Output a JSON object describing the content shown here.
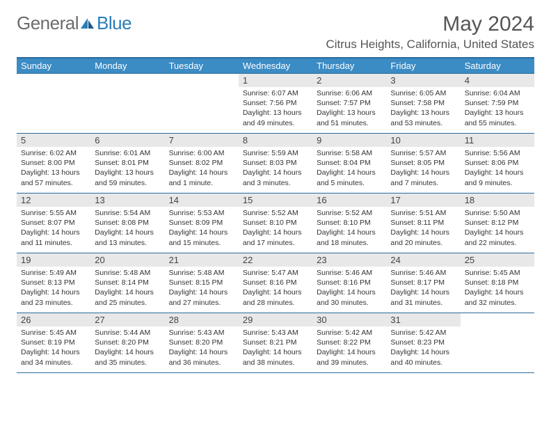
{
  "logo": {
    "text1": "General",
    "text2": "Blue"
  },
  "title": "May 2024",
  "location": "Citrus Heights, California, United States",
  "colors": {
    "header_bg": "#3b8bc4",
    "header_border": "#2a6b9c",
    "daynum_bg": "#e8e8e8",
    "text": "#333333",
    "title_text": "#555555"
  },
  "weekdays": [
    "Sunday",
    "Monday",
    "Tuesday",
    "Wednesday",
    "Thursday",
    "Friday",
    "Saturday"
  ],
  "weeks": [
    [
      null,
      null,
      null,
      {
        "n": "1",
        "sr": "6:07 AM",
        "ss": "7:56 PM",
        "dl": "13 hours and 49 minutes."
      },
      {
        "n": "2",
        "sr": "6:06 AM",
        "ss": "7:57 PM",
        "dl": "13 hours and 51 minutes."
      },
      {
        "n": "3",
        "sr": "6:05 AM",
        "ss": "7:58 PM",
        "dl": "13 hours and 53 minutes."
      },
      {
        "n": "4",
        "sr": "6:04 AM",
        "ss": "7:59 PM",
        "dl": "13 hours and 55 minutes."
      }
    ],
    [
      {
        "n": "5",
        "sr": "6:02 AM",
        "ss": "8:00 PM",
        "dl": "13 hours and 57 minutes."
      },
      {
        "n": "6",
        "sr": "6:01 AM",
        "ss": "8:01 PM",
        "dl": "13 hours and 59 minutes."
      },
      {
        "n": "7",
        "sr": "6:00 AM",
        "ss": "8:02 PM",
        "dl": "14 hours and 1 minute."
      },
      {
        "n": "8",
        "sr": "5:59 AM",
        "ss": "8:03 PM",
        "dl": "14 hours and 3 minutes."
      },
      {
        "n": "9",
        "sr": "5:58 AM",
        "ss": "8:04 PM",
        "dl": "14 hours and 5 minutes."
      },
      {
        "n": "10",
        "sr": "5:57 AM",
        "ss": "8:05 PM",
        "dl": "14 hours and 7 minutes."
      },
      {
        "n": "11",
        "sr": "5:56 AM",
        "ss": "8:06 PM",
        "dl": "14 hours and 9 minutes."
      }
    ],
    [
      {
        "n": "12",
        "sr": "5:55 AM",
        "ss": "8:07 PM",
        "dl": "14 hours and 11 minutes."
      },
      {
        "n": "13",
        "sr": "5:54 AM",
        "ss": "8:08 PM",
        "dl": "14 hours and 13 minutes."
      },
      {
        "n": "14",
        "sr": "5:53 AM",
        "ss": "8:09 PM",
        "dl": "14 hours and 15 minutes."
      },
      {
        "n": "15",
        "sr": "5:52 AM",
        "ss": "8:10 PM",
        "dl": "14 hours and 17 minutes."
      },
      {
        "n": "16",
        "sr": "5:52 AM",
        "ss": "8:10 PM",
        "dl": "14 hours and 18 minutes."
      },
      {
        "n": "17",
        "sr": "5:51 AM",
        "ss": "8:11 PM",
        "dl": "14 hours and 20 minutes."
      },
      {
        "n": "18",
        "sr": "5:50 AM",
        "ss": "8:12 PM",
        "dl": "14 hours and 22 minutes."
      }
    ],
    [
      {
        "n": "19",
        "sr": "5:49 AM",
        "ss": "8:13 PM",
        "dl": "14 hours and 23 minutes."
      },
      {
        "n": "20",
        "sr": "5:48 AM",
        "ss": "8:14 PM",
        "dl": "14 hours and 25 minutes."
      },
      {
        "n": "21",
        "sr": "5:48 AM",
        "ss": "8:15 PM",
        "dl": "14 hours and 27 minutes."
      },
      {
        "n": "22",
        "sr": "5:47 AM",
        "ss": "8:16 PM",
        "dl": "14 hours and 28 minutes."
      },
      {
        "n": "23",
        "sr": "5:46 AM",
        "ss": "8:16 PM",
        "dl": "14 hours and 30 minutes."
      },
      {
        "n": "24",
        "sr": "5:46 AM",
        "ss": "8:17 PM",
        "dl": "14 hours and 31 minutes."
      },
      {
        "n": "25",
        "sr": "5:45 AM",
        "ss": "8:18 PM",
        "dl": "14 hours and 32 minutes."
      }
    ],
    [
      {
        "n": "26",
        "sr": "5:45 AM",
        "ss": "8:19 PM",
        "dl": "14 hours and 34 minutes."
      },
      {
        "n": "27",
        "sr": "5:44 AM",
        "ss": "8:20 PM",
        "dl": "14 hours and 35 minutes."
      },
      {
        "n": "28",
        "sr": "5:43 AM",
        "ss": "8:20 PM",
        "dl": "14 hours and 36 minutes."
      },
      {
        "n": "29",
        "sr": "5:43 AM",
        "ss": "8:21 PM",
        "dl": "14 hours and 38 minutes."
      },
      {
        "n": "30",
        "sr": "5:42 AM",
        "ss": "8:22 PM",
        "dl": "14 hours and 39 minutes."
      },
      {
        "n": "31",
        "sr": "5:42 AM",
        "ss": "8:23 PM",
        "dl": "14 hours and 40 minutes."
      },
      null
    ]
  ],
  "labels": {
    "sunrise": "Sunrise:",
    "sunset": "Sunset:",
    "daylight": "Daylight:"
  }
}
